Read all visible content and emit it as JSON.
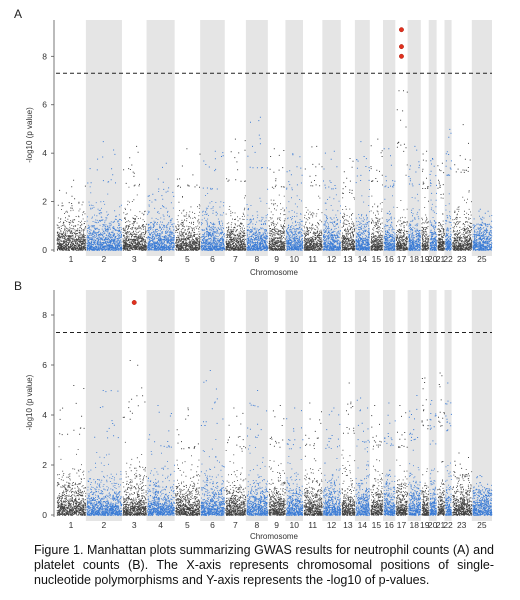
{
  "caption": "Figure 1. Manhattan plots summarizing GWAS results for neutrophil counts (A) and platelet counts (B). The X-axis represents chromosomal positions of single-nucleotide polymorphisms and Y-axis represents the -log10 of p-values.",
  "chart_data": [
    {
      "type": "scatter",
      "subtype": "manhattan",
      "panel_label": "A",
      "xlabel": "Chromosome",
      "ylabel": "-log10 (p value)",
      "ylim": [
        0,
        9.5
      ],
      "yticks": [
        0,
        2,
        4,
        6,
        8
      ],
      "significance_threshold": 7.3,
      "chromosome_labels": [
        "1",
        "2",
        "3",
        "4",
        "5",
        "6",
        "7",
        "8",
        "9",
        "10",
        "11",
        "12",
        "13",
        "14",
        "15",
        "16",
        "17",
        "18",
        "19",
        "20",
        "21",
        "22",
        "23",
        "25"
      ],
      "band_colors": {
        "odd_index": "#404040",
        "even_index": "#3a7bd5"
      },
      "background_bands": "alternate chromosomes shaded light gray",
      "peaks": [
        2.9,
        4.5,
        4.3,
        3.6,
        4.2,
        4.1,
        4.6,
        5.5,
        4.2,
        4.0,
        4.3,
        4.1,
        3.8,
        4.5,
        4.6,
        4.2,
        6.6,
        4.3,
        4.1,
        3.8,
        3.6,
        5.0,
        5.2,
        1.7
      ],
      "significant_hits": [
        {
          "chromosome": "17",
          "value": 9.1
        },
        {
          "chromosome": "17",
          "value": 8.4
        },
        {
          "chromosome": "17",
          "value": 8.0
        }
      ]
    },
    {
      "type": "scatter",
      "subtype": "manhattan",
      "panel_label": "B",
      "xlabel": "Chromosome",
      "ylabel": "-log10 (p value)",
      "ylim": [
        0,
        9.0
      ],
      "yticks": [
        0,
        2,
        4,
        6,
        8
      ],
      "significance_threshold": 7.3,
      "chromosome_labels": [
        "1",
        "2",
        "3",
        "4",
        "5",
        "6",
        "7",
        "8",
        "9",
        "10",
        "11",
        "12",
        "13",
        "14",
        "15",
        "16",
        "17",
        "18",
        "19",
        "20",
        "21",
        "22",
        "23",
        "25"
      ],
      "band_colors": {
        "odd_index": "#404040",
        "even_index": "#3a7bd5"
      },
      "background_bands": "alternate chromosomes shaded light gray",
      "peaks": [
        5.2,
        5.0,
        6.2,
        4.4,
        4.3,
        5.8,
        4.3,
        5.0,
        4.4,
        4.3,
        4.5,
        4.3,
        5.3,
        4.7,
        4.4,
        4.5,
        4.4,
        4.8,
        5.5,
        4.6,
        5.7,
        5.3,
        2.5,
        1.6
      ],
      "significant_hits": [
        {
          "chromosome": "3",
          "value": 8.5
        }
      ]
    }
  ]
}
